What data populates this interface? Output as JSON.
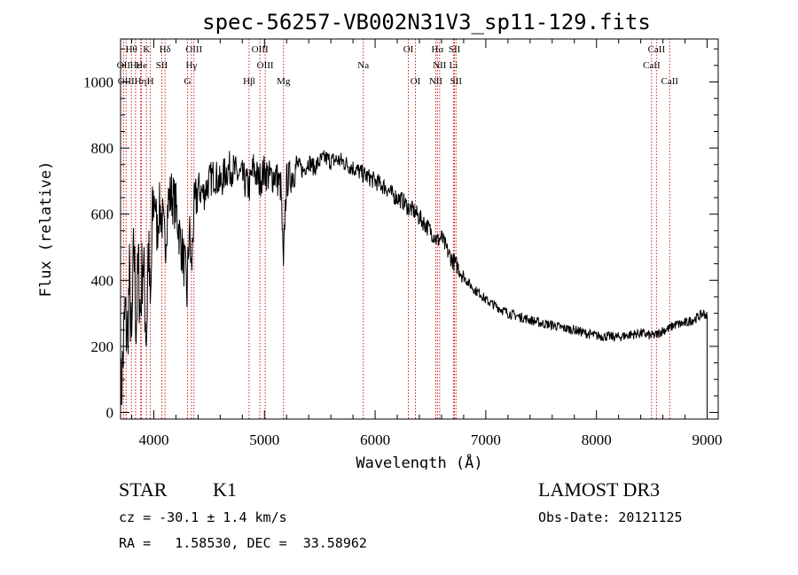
{
  "chart_data": {
    "type": "line",
    "title": "spec-56257-VB002N31V3_sp11-129.fits",
    "xlabel": "Wavelength (Å)",
    "ylabel": "Flux (relative)",
    "xlim": [
      3700,
      9100
    ],
    "ylim": [
      -20,
      1130
    ],
    "x_ticks": [
      4000,
      5000,
      6000,
      7000,
      8000,
      9000
    ],
    "x_tick_labels": [
      "4000",
      "5000",
      "6000",
      "7000",
      "8000",
      "9000"
    ],
    "y_ticks": [
      0,
      200,
      400,
      600,
      800,
      1000
    ],
    "y_tick_labels": [
      "0",
      "200",
      "400",
      "600",
      "800",
      "1000"
    ],
    "series": [
      {
        "name": "flux",
        "x": [
          3700,
          3720,
          3740,
          3760,
          3780,
          3800,
          3820,
          3840,
          3860,
          3880,
          3900,
          3920,
          3934,
          3950,
          3969,
          3990,
          4010,
          4030,
          4050,
          4080,
          4102,
          4130,
          4160,
          4200,
          4240,
          4280,
          4300,
          4320,
          4340,
          4360,
          4400,
          4450,
          4500,
          4550,
          4600,
          4650,
          4700,
          4750,
          4800,
          4861,
          4900,
          4950,
          5000,
          5050,
          5100,
          5150,
          5172,
          5185,
          5200,
          5250,
          5300,
          5350,
          5400,
          5450,
          5500,
          5550,
          5600,
          5650,
          5700,
          5750,
          5800,
          5850,
          5893,
          5950,
          6000,
          6050,
          6100,
          6150,
          6200,
          6250,
          6300,
          6350,
          6400,
          6450,
          6500,
          6563,
          6600,
          6650,
          6700,
          6750,
          6800,
          6850,
          6900,
          6950,
          7000,
          7100,
          7200,
          7300,
          7400,
          7500,
          7600,
          7700,
          7800,
          7900,
          8000,
          8100,
          8200,
          8300,
          8400,
          8498,
          8542,
          8600,
          8662,
          8700,
          8800,
          8900,
          8970,
          9000
        ],
        "values": [
          30,
          150,
          300,
          220,
          400,
          180,
          520,
          260,
          440,
          300,
          480,
          330,
          220,
          520,
          280,
          600,
          660,
          540,
          620,
          580,
          500,
          640,
          660,
          620,
          520,
          440,
          360,
          560,
          420,
          600,
          680,
          660,
          700,
          720,
          690,
          730,
          740,
          720,
          710,
          680,
          740,
          700,
          730,
          710,
          720,
          680,
          420,
          600,
          700,
          720,
          750,
          730,
          760,
          740,
          760,
          770,
          760,
          765,
          760,
          750,
          740,
          730,
          720,
          710,
          700,
          690,
          680,
          660,
          650,
          640,
          620,
          610,
          590,
          570,
          550,
          520,
          530,
          490,
          460,
          440,
          410,
          390,
          370,
          360,
          340,
          320,
          300,
          290,
          280,
          270,
          265,
          255,
          250,
          240,
          232,
          230,
          228,
          235,
          240,
          232,
          235,
          248,
          255,
          265,
          270,
          285,
          300,
          290
        ]
      }
    ],
    "lines_top": [
      {
        "label": "Hθ",
        "x": 3798
      },
      {
        "label": "K",
        "x": 3934
      },
      {
        "label": "Hδ",
        "x": 4102
      },
      {
        "label": "OIII",
        "x": 4363
      },
      {
        "label": "OIII",
        "x": 4959
      },
      {
        "label": "OI",
        "x": 6300
      },
      {
        "label": "Hα",
        "x": 6563
      },
      {
        "label": "SII",
        "x": 6717
      },
      {
        "label": "CaII",
        "x": 8542
      }
    ],
    "lines_middle": [
      {
        "label": "OII",
        "x": 3727
      },
      {
        "label": "Hε",
        "x": 3835
      },
      {
        "label": "He",
        "x": 3889
      },
      {
        "label": "SII",
        "x": 4072
      },
      {
        "label": "Hγ",
        "x": 4340
      },
      {
        "label": "OIII",
        "x": 5007
      },
      {
        "label": "Na",
        "x": 5893
      },
      {
        "label": "NII",
        "x": 6583
      },
      {
        "label": "Li",
        "x": 6708
      },
      {
        "label": "CaII",
        "x": 8498
      }
    ],
    "lines_bottom": [
      {
        "label": "OIII",
        "x": 3750
      },
      {
        "label": "Hη",
        "x": 3880
      },
      {
        "label": "H",
        "x": 3969
      },
      {
        "label": "G",
        "x": 4305
      },
      {
        "label": "Hβ",
        "x": 4861
      },
      {
        "label": "Mg",
        "x": 5172
      },
      {
        "label": "OI",
        "x": 6364
      },
      {
        "label": "NII",
        "x": 6548
      },
      {
        "label": "SII",
        "x": 6731
      },
      {
        "label": "CaII",
        "x": 8662
      }
    ]
  },
  "info": {
    "object_class": "STAR",
    "subclass": "K1",
    "survey": "LAMOST DR3",
    "cz": "cz = -30.1 ± 1.4 km/s",
    "obs_date": "Obs-Date: 20121125",
    "coords": "RA =   1.58530, DEC =  33.58962"
  },
  "colors": {
    "spectrum": "#000000",
    "line_markers": "#cc2222",
    "axes": "#000000",
    "background": "#ffffff"
  }
}
